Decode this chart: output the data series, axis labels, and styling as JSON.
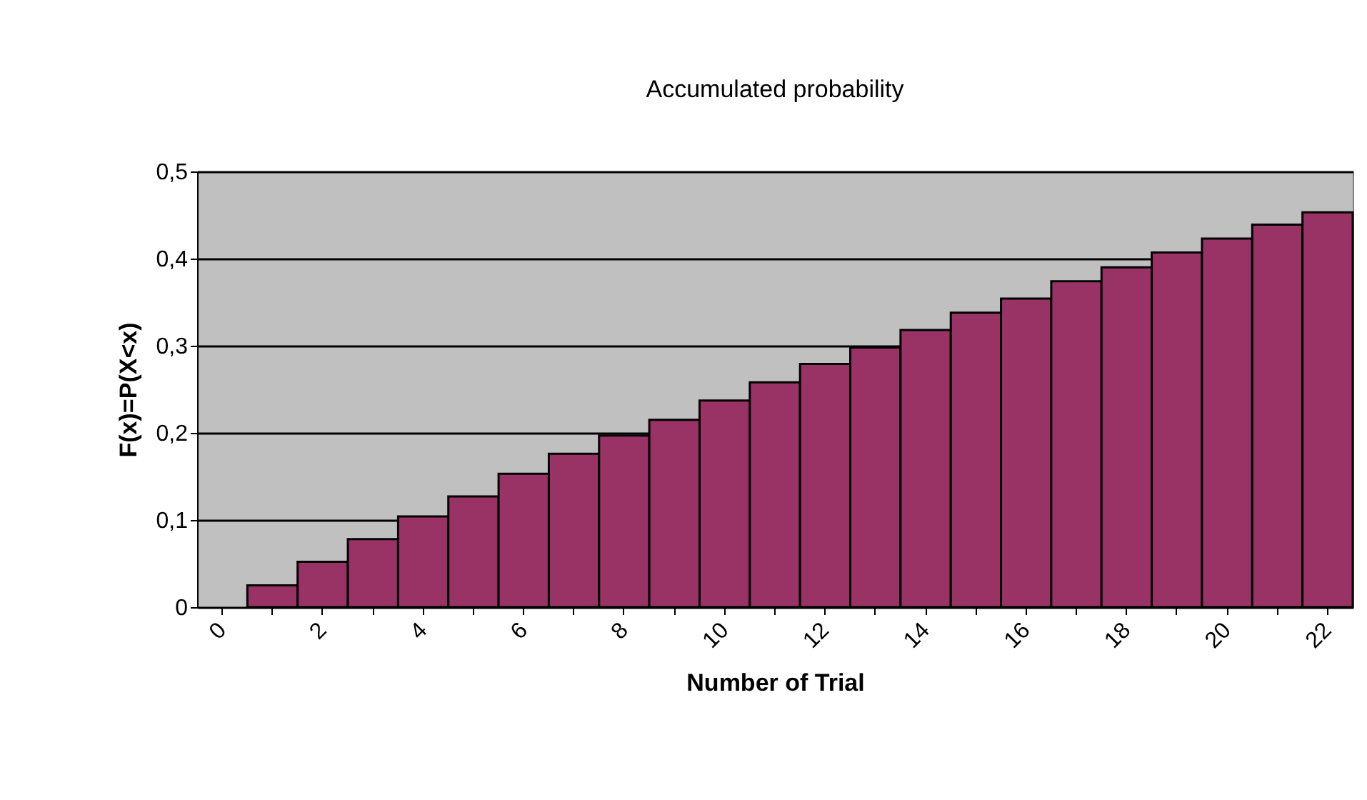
{
  "chart_data": {
    "type": "bar",
    "title": "Accumulated probability",
    "xlabel": "Number of Trial",
    "ylabel": "F(x)=P(X<x)",
    "categories": [
      "0",
      null,
      "2",
      null,
      "4",
      null,
      "6",
      null,
      "8",
      null,
      "10",
      null,
      "12",
      null,
      "14",
      null,
      "16",
      null,
      "18",
      null,
      "20",
      null,
      "22"
    ],
    "values": [
      0,
      0.025,
      0.052,
      0.078,
      0.104,
      0.127,
      0.153,
      0.176,
      0.197,
      0.215,
      0.237,
      0.258,
      0.279,
      0.298,
      0.318,
      0.338,
      0.354,
      0.374,
      0.39,
      0.407,
      0.423,
      0.439,
      0.453
    ],
    "color": "#993366",
    "ylim": [
      0,
      0.5
    ],
    "yticks": [
      0,
      {
        "value": 0.1,
        "label": "0,1"
      },
      {
        "value": 0.2,
        "label": "0,2"
      },
      {
        "value": 0.3,
        "label": "0,3"
      },
      {
        "value": 0.4,
        "label": "0,4"
      },
      {
        "value": 0.5,
        "label": "0,5"
      }
    ],
    "grid": "y"
  }
}
